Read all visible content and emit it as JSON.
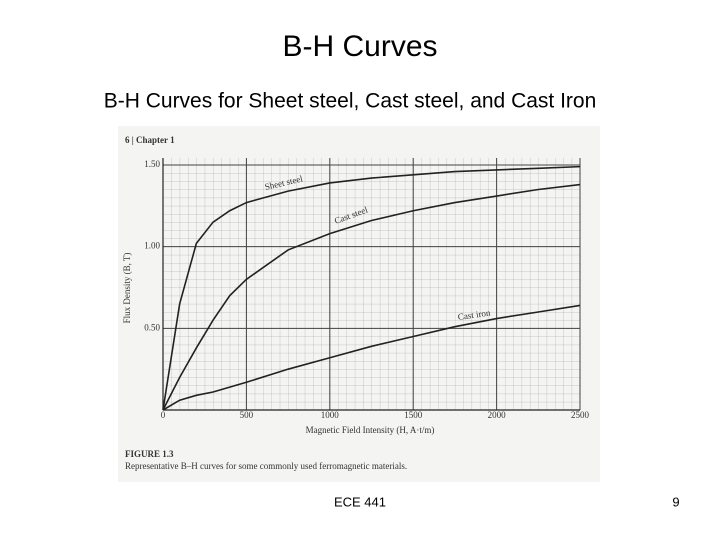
{
  "title": "B-H Curves",
  "subtitle": "B-H Curves for Sheet steel, Cast steel, and Cast Iron",
  "footer": "ECE 441",
  "page_number": "9",
  "chart_data": {
    "type": "line",
    "header": "6 | Chapter 1",
    "xlabel": "Magnetic Field Intensity (H, A·t/m)",
    "ylabel": "Flux Density (B, T)",
    "figure_label": "FIGURE 1.3",
    "caption": "Representative B–H curves for some commonly used ferromagnetic materials.",
    "x": [
      0,
      100,
      200,
      300,
      400,
      500,
      750,
      1000,
      1250,
      1500,
      1750,
      2000,
      2250,
      2500
    ],
    "series": [
      {
        "name": "Sheet steel",
        "color": "#222222",
        "values": [
          0,
          0.65,
          1.02,
          1.15,
          1.22,
          1.27,
          1.34,
          1.39,
          1.42,
          1.44,
          1.46,
          1.47,
          1.48,
          1.49
        ]
      },
      {
        "name": "Cast steel",
        "color": "#222222",
        "values": [
          0,
          0.2,
          0.38,
          0.55,
          0.7,
          0.8,
          0.98,
          1.08,
          1.16,
          1.22,
          1.27,
          1.31,
          1.35,
          1.38
        ]
      },
      {
        "name": "Cast iron",
        "color": "#222222",
        "values": [
          0,
          0.06,
          0.09,
          0.11,
          0.14,
          0.17,
          0.25,
          0.32,
          0.39,
          0.45,
          0.51,
          0.56,
          0.6,
          0.64
        ]
      }
    ],
    "xlim": [
      0,
      2500
    ],
    "ylim": [
      0,
      1.5
    ],
    "xticks": [
      0,
      500,
      1000,
      1500,
      2000,
      2500
    ],
    "yticks": [
      {
        "value": 0.5,
        "label": "0.50"
      },
      {
        "value": 1,
        "label": "1.00"
      },
      {
        "value": 1.5,
        "label": "1.50"
      }
    ],
    "grid": true
  }
}
